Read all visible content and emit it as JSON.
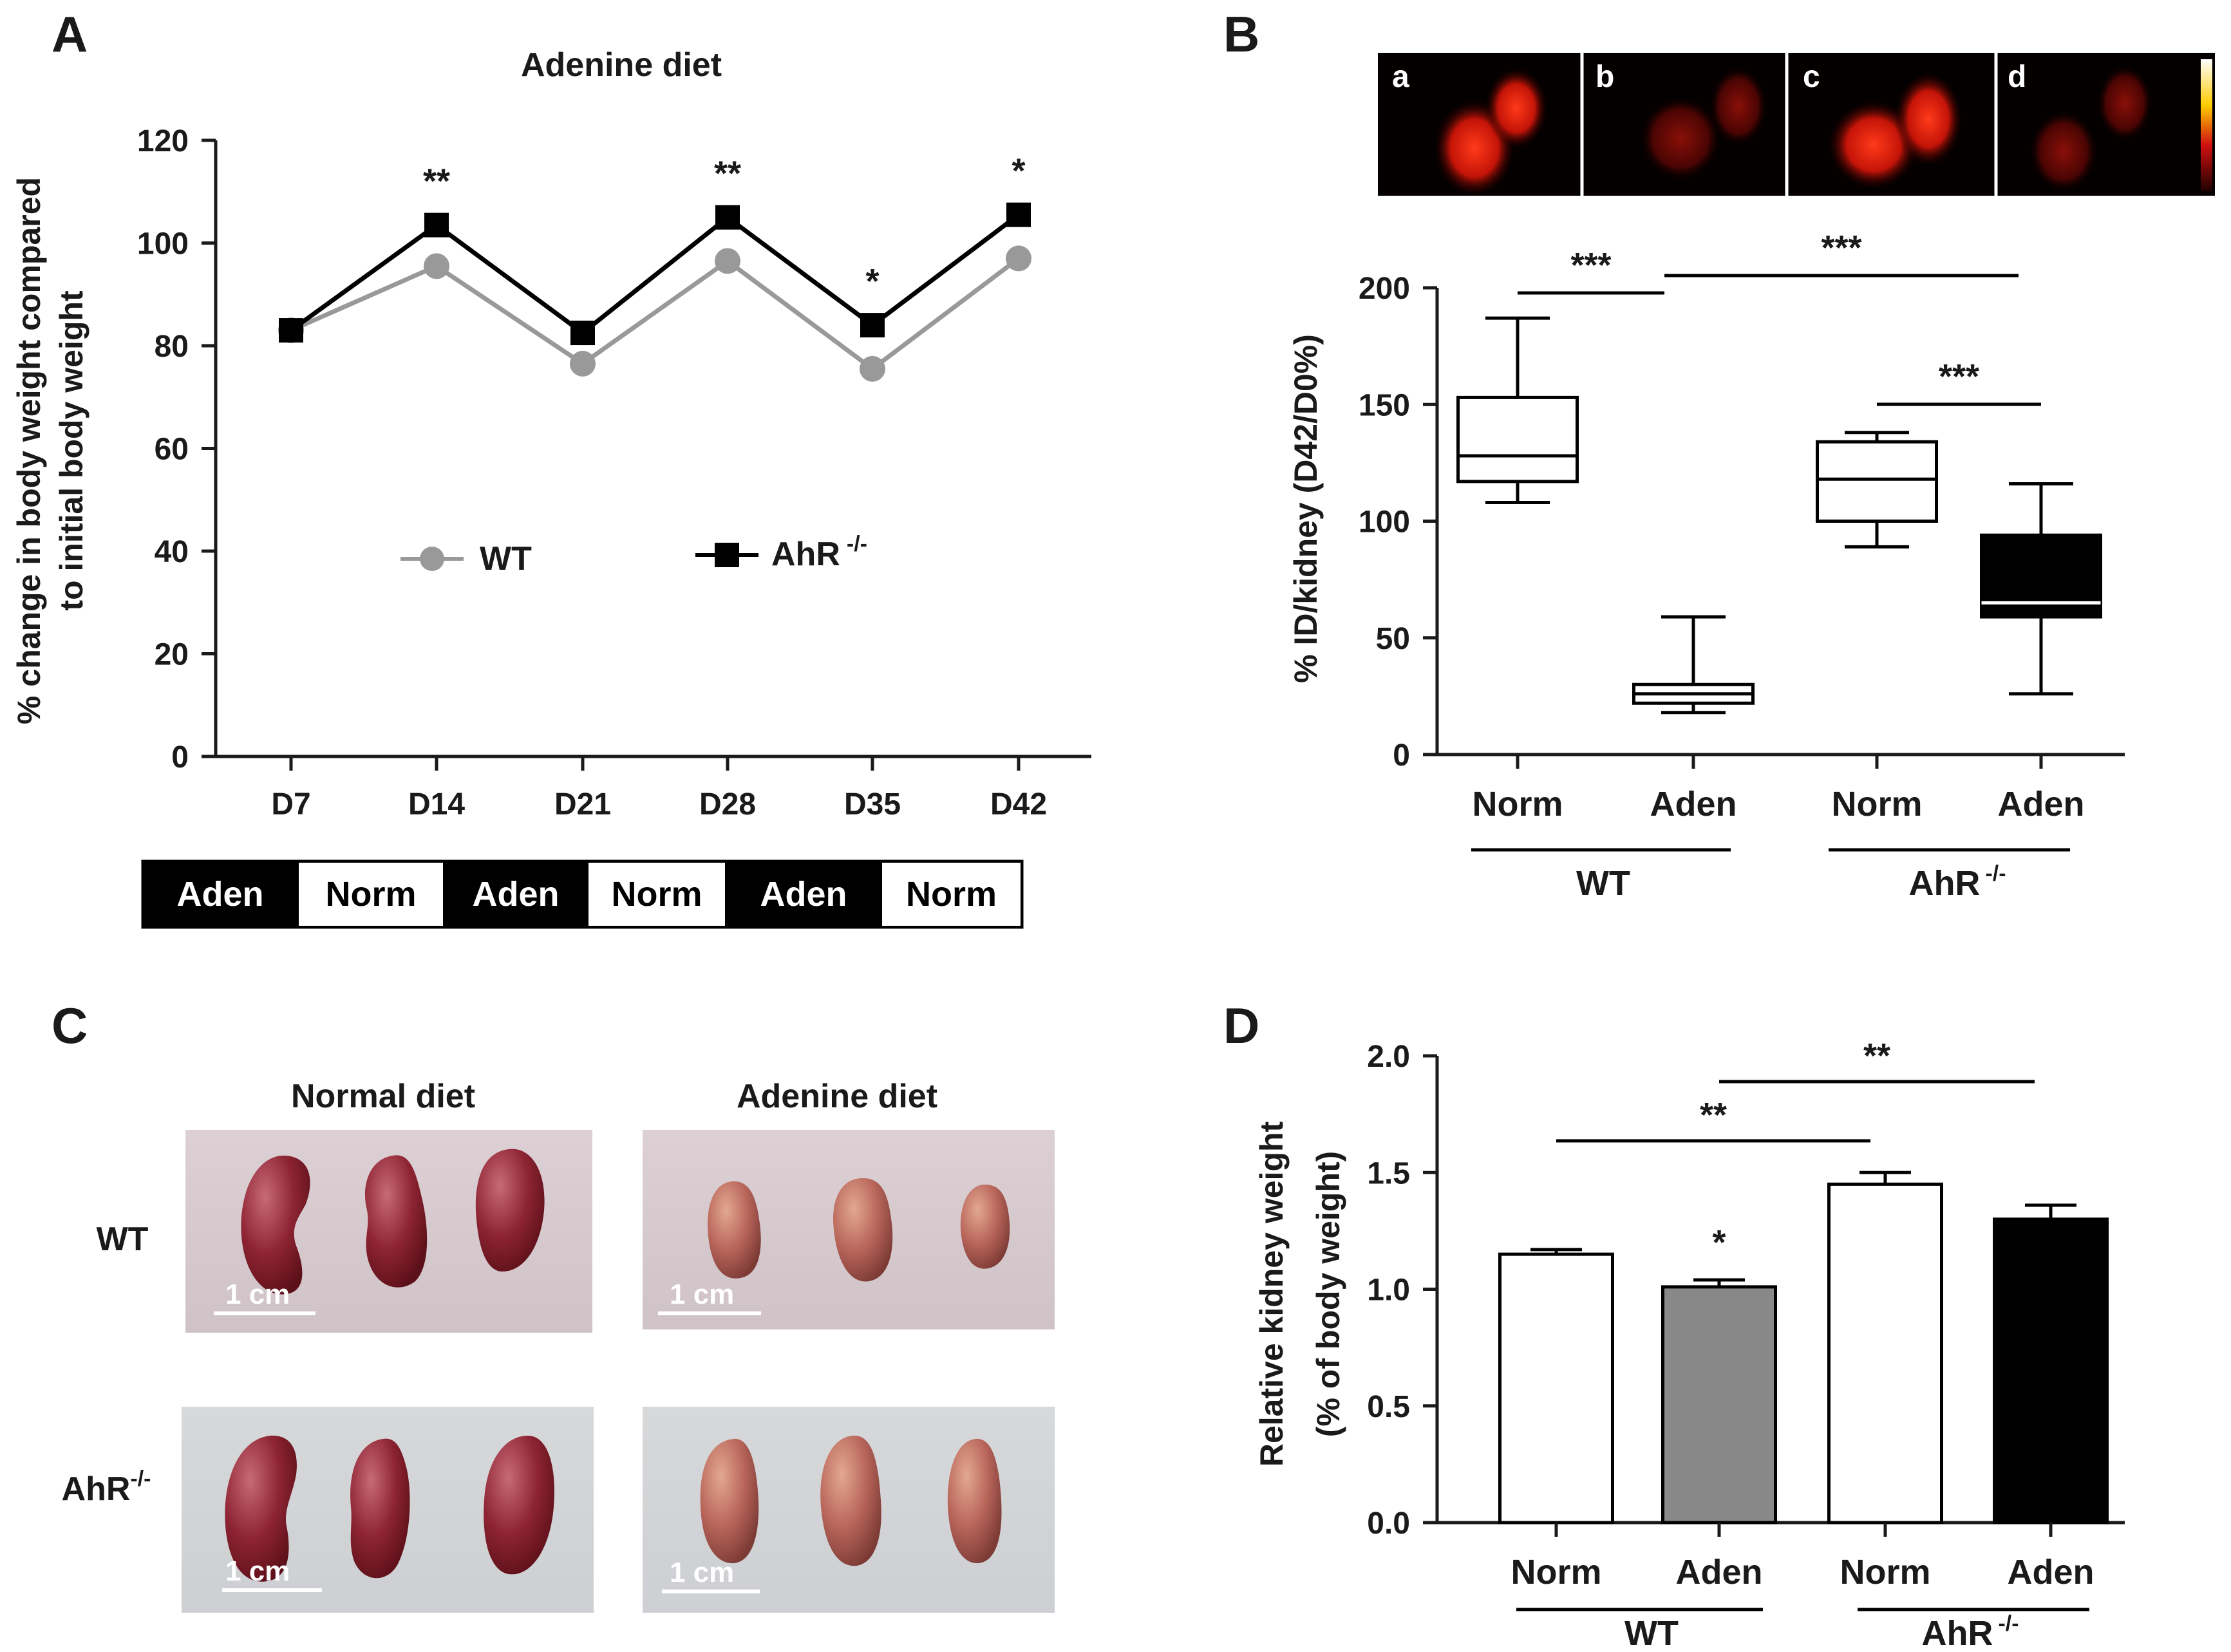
{
  "panels": {
    "A": {
      "letter": "A",
      "diet_bar": [
        "Aden",
        "Norm",
        "Aden",
        "Norm",
        "Aden",
        "Norm"
      ]
    },
    "B": {
      "letter": "B",
      "image_labels": [
        "a",
        "b",
        "c",
        "d"
      ]
    },
    "C": {
      "letter": "C",
      "col_titles": [
        "Normal diet",
        "Adenine diet"
      ],
      "row_wt": "WT",
      "row_ahr_base": "AhR",
      "row_ahr_sup": "-/-",
      "scale_label": "1 cm"
    },
    "D": {
      "letter": "D"
    }
  },
  "chart_data": [
    {
      "id": "A",
      "type": "line",
      "title": "Adenine diet",
      "ylabel_line1": "% change in body weight compared",
      "ylabel_line2": "to initial body weight",
      "xlabel": "",
      "ylim": [
        0,
        120
      ],
      "yticks": [
        0,
        20,
        40,
        60,
        80,
        100,
        120
      ],
      "categories": [
        "D7",
        "D14",
        "D21",
        "D28",
        "D35",
        "D42"
      ],
      "series": [
        {
          "name": "WT",
          "color": "#999999",
          "marker": "circle",
          "values": [
            83,
            95.5,
            76.5,
            96.5,
            75.5,
            97
          ]
        },
        {
          "name": "AhR -/-",
          "name_base": "AhR",
          "name_sup": "-/-",
          "color": "#000000",
          "marker": "square",
          "values": [
            83,
            103.5,
            82.5,
            105,
            84,
            105.5
          ]
        }
      ],
      "significance": [
        "",
        "**",
        "",
        "**",
        "*",
        "*"
      ]
    },
    {
      "id": "B",
      "type": "box",
      "ylabel": "% ID/kidney (D42/D0%)",
      "ylim": [
        0,
        200
      ],
      "yticks": [
        0,
        50,
        100,
        150,
        200
      ],
      "categories": [
        "Norm",
        "Aden",
        "Norm",
        "Aden"
      ],
      "groups": [
        {
          "label": "WT",
          "label_base": "WT",
          "label_sup": ""
        },
        {
          "label": "AhR -/-",
          "label_base": "AhR",
          "label_sup": "-/-"
        }
      ],
      "boxes": [
        {
          "min": 108,
          "q1": 117,
          "median": 128,
          "q3": 153,
          "max": 187,
          "fill": "#ffffff"
        },
        {
          "min": 18,
          "q1": 22,
          "median": 26,
          "q3": 30,
          "max": 59,
          "fill": "#ffffff"
        },
        {
          "min": 89,
          "q1": 100,
          "median": 118,
          "q3": 134,
          "max": 138,
          "fill": "#ffffff"
        },
        {
          "min": 26,
          "q1": 59,
          "median": 65,
          "q3": 94,
          "max": 116,
          "fill": "#000000"
        }
      ],
      "comparisons": [
        {
          "from": 0,
          "to": 1,
          "label": "***"
        },
        {
          "from": 1,
          "to": 3,
          "label": "***"
        },
        {
          "from": 2,
          "to": 3,
          "label": "***"
        }
      ]
    },
    {
      "id": "D",
      "type": "bar",
      "ylabel_line1": "Relative kidney weight",
      "ylabel_line2": "(% of body weight)",
      "ylim": [
        0,
        2.0
      ],
      "yticks": [
        "0.0",
        "0.5",
        "1.0",
        "1.5",
        "2.0"
      ],
      "categories": [
        "Norm",
        "Aden",
        "Norm",
        "Aden"
      ],
      "groups": [
        {
          "label": "WT",
          "label_base": "WT",
          "label_sup": ""
        },
        {
          "label": "AhR -/-",
          "label_base": "AhR",
          "label_sup": "-/-"
        }
      ],
      "values": [
        1.15,
        1.01,
        1.45,
        1.3
      ],
      "errors": [
        0.02,
        0.03,
        0.05,
        0.06
      ],
      "fills": [
        "#ffffff",
        "#888888",
        "#ffffff",
        "#000000"
      ],
      "bar_labels": [
        "",
        "*",
        "",
        ""
      ],
      "comparisons": [
        {
          "from": 0,
          "to": 2,
          "label": "**"
        },
        {
          "from": 1,
          "to": 3,
          "label": "**"
        }
      ]
    }
  ]
}
